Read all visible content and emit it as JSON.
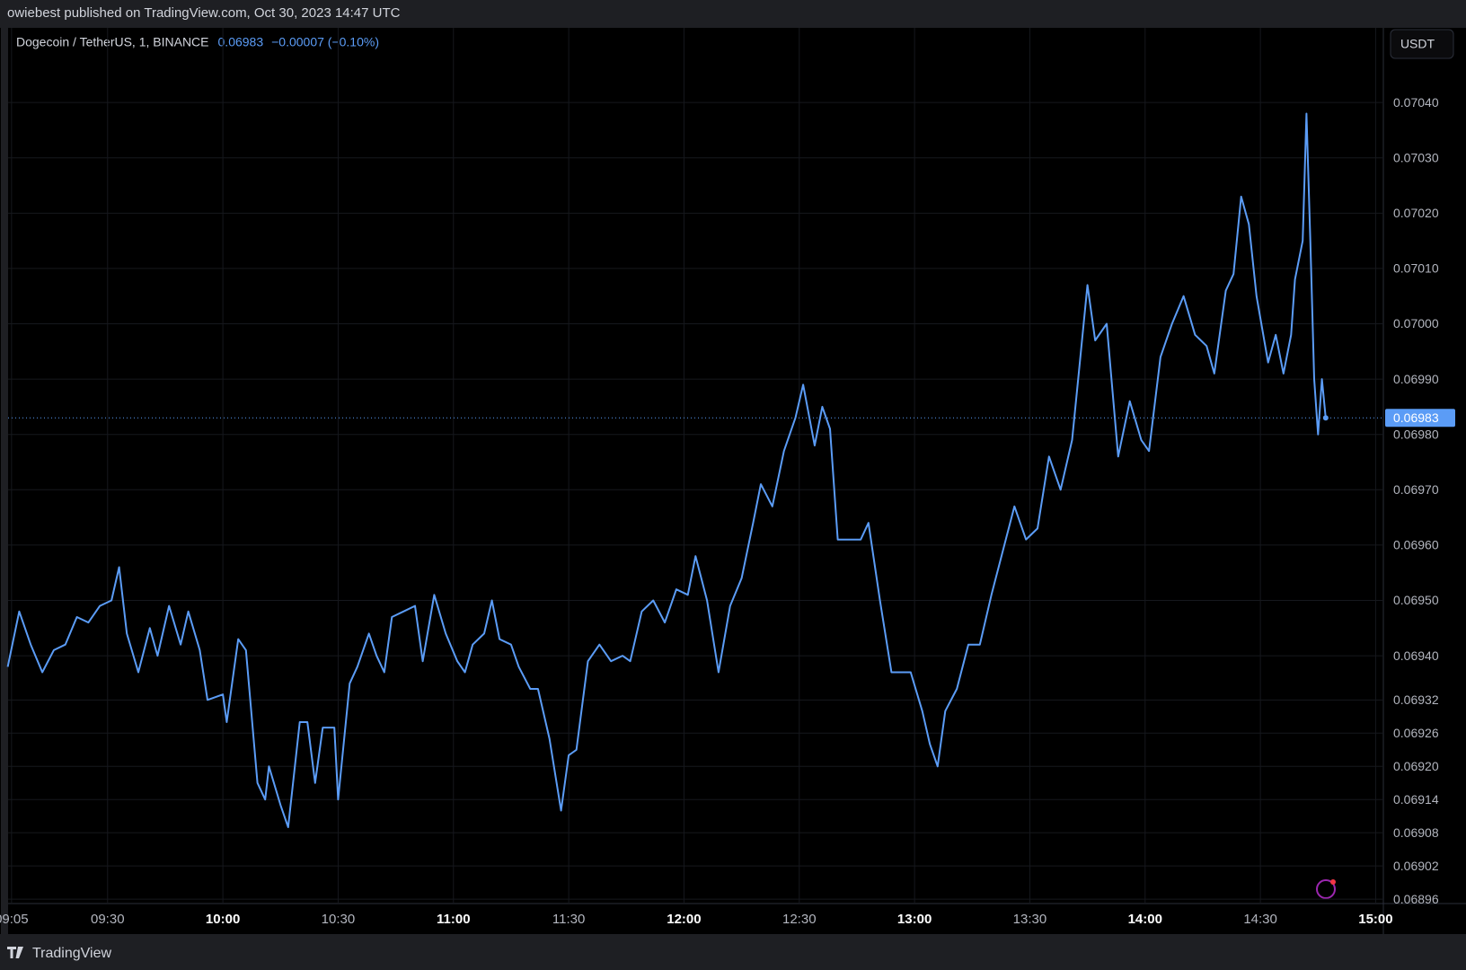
{
  "header": {
    "publisher": "owiebest published on TradingView.com, Oct 30, 2023 14:47 UTC"
  },
  "legend": {
    "symbol": "Dogecoin / TetherUS, 1, BINANCE",
    "price": "0.06983",
    "change": "−0.00007 (−0.10%)"
  },
  "currency": "USDT",
  "footer": {
    "brand": "TradingView"
  },
  "chart_data": {
    "type": "line",
    "color": "#5b9cf6",
    "x": [
      "09:04",
      "09:07",
      "09:10",
      "09:13",
      "09:16",
      "09:19",
      "09:22",
      "09:25",
      "09:28",
      "09:31",
      "09:33",
      "09:35",
      "09:38",
      "09:41",
      "09:43",
      "09:46",
      "09:49",
      "09:51",
      "09:54",
      "09:56",
      "10:00",
      "10:01",
      "10:04",
      "10:06",
      "10:09",
      "10:11",
      "10:12",
      "10:15",
      "10:17",
      "10:20",
      "10:22",
      "10:24",
      "10:26",
      "10:29",
      "10:30",
      "10:33",
      "10:35",
      "10:38",
      "10:40",
      "10:42",
      "10:44",
      "10:47",
      "10:50",
      "10:52",
      "10:55",
      "10:58",
      "11:01",
      "11:03",
      "11:05",
      "11:08",
      "11:10",
      "11:12",
      "11:15",
      "11:17",
      "11:20",
      "11:22",
      "11:25",
      "11:28",
      "11:30",
      "11:32",
      "11:35",
      "11:38",
      "11:41",
      "11:44",
      "11:46",
      "11:49",
      "11:52",
      "11:55",
      "11:58",
      "12:01",
      "12:03",
      "12:06",
      "12:09",
      "12:12",
      "12:15",
      "12:18",
      "12:20",
      "12:23",
      "12:26",
      "12:29",
      "12:31",
      "12:34",
      "12:36",
      "12:38",
      "12:40",
      "12:43",
      "12:46",
      "12:48",
      "12:51",
      "12:54",
      "12:57",
      "12:59",
      "13:02",
      "13:04",
      "13:06",
      "13:08",
      "13:11",
      "13:14",
      "13:17",
      "13:20",
      "13:23",
      "13:26",
      "13:29",
      "13:32",
      "13:35",
      "13:38",
      "13:41",
      "13:43",
      "13:45",
      "13:47",
      "13:50",
      "13:53",
      "13:56",
      "13:59",
      "14:01",
      "14:04",
      "14:07",
      "14:10",
      "14:13",
      "14:16",
      "14:18",
      "14:21",
      "14:23",
      "14:25",
      "14:27",
      "14:29",
      "14:32",
      "14:34",
      "14:36",
      "14:38",
      "14:39",
      "14:41",
      "14:42",
      "14:43",
      "14:44",
      "14:45",
      "14:46",
      "14:47"
    ],
    "values": [
      0.06938,
      0.06948,
      0.06942,
      0.06937,
      0.06941,
      0.06942,
      0.06947,
      0.06946,
      0.06949,
      0.0695,
      0.06956,
      0.06944,
      0.06937,
      0.06945,
      0.0694,
      0.06949,
      0.06942,
      0.06948,
      0.06941,
      0.06932,
      0.06933,
      0.06928,
      0.06943,
      0.06941,
      0.06917,
      0.06914,
      0.0692,
      0.06913,
      0.06909,
      0.06928,
      0.06928,
      0.06917,
      0.06927,
      0.06927,
      0.06914,
      0.06935,
      0.06938,
      0.06944,
      0.0694,
      0.06937,
      0.06947,
      0.06948,
      0.06949,
      0.06939,
      0.06951,
      0.06944,
      0.06939,
      0.06937,
      0.06942,
      0.06944,
      0.0695,
      0.06943,
      0.06942,
      0.06938,
      0.06934,
      0.06934,
      0.06925,
      0.06912,
      0.06922,
      0.06923,
      0.06939,
      0.06942,
      0.06939,
      0.0694,
      0.06939,
      0.06948,
      0.0695,
      0.06946,
      0.06952,
      0.06951,
      0.06958,
      0.0695,
      0.06937,
      0.06949,
      0.06954,
      0.06964,
      0.06971,
      0.06967,
      0.06977,
      0.06983,
      0.06989,
      0.06978,
      0.06985,
      0.06981,
      0.06961,
      0.06961,
      0.06961,
      0.06964,
      0.0695,
      0.06937,
      0.06937,
      0.06937,
      0.0693,
      0.06924,
      0.0692,
      0.0693,
      0.06934,
      0.06942,
      0.06942,
      0.06951,
      0.06959,
      0.06967,
      0.06961,
      0.06963,
      0.06976,
      0.0697,
      0.06979,
      0.06993,
      0.07007,
      0.06997,
      0.07,
      0.06976,
      0.06986,
      0.06979,
      0.06977,
      0.06994,
      0.07,
      0.07005,
      0.06998,
      0.06996,
      0.06991,
      0.07006,
      0.07009,
      0.07023,
      0.07018,
      0.07005,
      0.06993,
      0.06998,
      0.06991,
      0.06998,
      0.07008,
      0.07015,
      0.07038,
      0.07015,
      0.0699,
      0.0698,
      0.0699,
      0.06983
    ],
    "last_price": {
      "value": 0.06983,
      "label": "0.06983"
    },
    "xlim": [
      "09:02",
      "15:02"
    ],
    "xticks": [
      "09:05",
      "09:30",
      "10:00",
      "10:30",
      "11:00",
      "11:30",
      "12:00",
      "12:30",
      "13:00",
      "13:30",
      "14:00",
      "14:30",
      "15:00"
    ],
    "ylim": [
      0.068952,
      0.070535
    ],
    "yticks": [
      {
        "value": 0.06896,
        "label": "0.06896"
      },
      {
        "value": 0.06902,
        "label": "0.06902"
      },
      {
        "value": 0.06908,
        "label": "0.06908"
      },
      {
        "value": 0.06914,
        "label": "0.06914"
      },
      {
        "value": 0.0692,
        "label": "0.06920"
      },
      {
        "value": 0.06926,
        "label": "0.06926"
      },
      {
        "value": 0.06932,
        "label": "0.06932"
      },
      {
        "value": 0.0694,
        "label": "0.06940"
      },
      {
        "value": 0.0695,
        "label": "0.06950"
      },
      {
        "value": 0.0696,
        "label": "0.06960"
      },
      {
        "value": 0.0697,
        "label": "0.06970"
      },
      {
        "value": 0.0698,
        "label": "0.06980"
      },
      {
        "value": 0.0699,
        "label": "0.06990"
      },
      {
        "value": 0.07,
        "label": "0.07000"
      },
      {
        "value": 0.0701,
        "label": "0.07010"
      },
      {
        "value": 0.0702,
        "label": "0.07020"
      },
      {
        "value": 0.0703,
        "label": "0.07030"
      },
      {
        "value": 0.0704,
        "label": "0.07040"
      }
    ],
    "grid": true
  }
}
